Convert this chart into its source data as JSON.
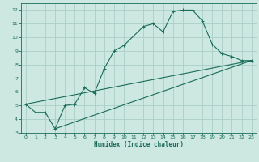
{
  "xlabel": "Humidex (Indice chaleur)",
  "bg_color": "#cce8e0",
  "line_color": "#1a6b5a",
  "grid_color": "#aacfc8",
  "xlim": [
    -0.5,
    23.5
  ],
  "ylim": [
    3,
    12.5
  ],
  "xticks": [
    0,
    1,
    2,
    3,
    4,
    5,
    6,
    7,
    8,
    9,
    10,
    11,
    12,
    13,
    14,
    15,
    16,
    17,
    18,
    19,
    20,
    21,
    22,
    23
  ],
  "yticks": [
    3,
    4,
    5,
    6,
    7,
    8,
    9,
    10,
    11,
    12
  ],
  "line1_x": [
    0,
    1,
    2,
    3,
    4,
    5,
    6,
    7,
    8,
    9,
    10,
    11,
    12,
    13,
    14,
    15,
    16,
    17,
    18,
    19,
    20,
    21,
    22,
    23
  ],
  "line1_y": [
    5.1,
    4.5,
    4.5,
    3.3,
    5.0,
    5.1,
    6.3,
    5.9,
    7.7,
    9.0,
    9.4,
    10.1,
    10.8,
    11.0,
    10.4,
    11.9,
    12.0,
    12.0,
    11.2,
    9.5,
    8.8,
    8.6,
    8.3,
    8.3
  ],
  "line2_x": [
    0,
    23
  ],
  "line2_y": [
    5.1,
    8.3
  ],
  "line3_x": [
    3,
    23
  ],
  "line3_y": [
    3.3,
    8.3
  ]
}
